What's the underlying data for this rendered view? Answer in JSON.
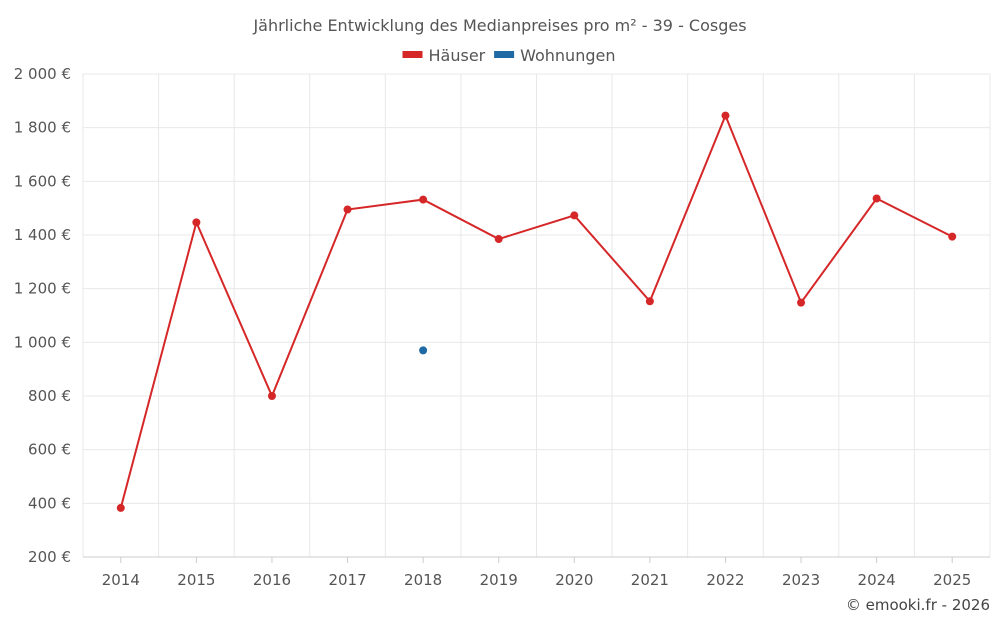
{
  "chart_data": {
    "type": "line",
    "title": "Jährliche Entwicklung des Medianpreises pro m² - 39 - Cosges",
    "xlabel": "",
    "ylabel": "",
    "categories": [
      "2014",
      "2015",
      "2016",
      "2017",
      "2018",
      "2019",
      "2020",
      "2021",
      "2022",
      "2023",
      "2024",
      "2025"
    ],
    "ylim": [
      200,
      2000
    ],
    "yticks": [
      200,
      400,
      600,
      800,
      1000,
      1200,
      1400,
      1600,
      1800,
      2000
    ],
    "ytick_labels": [
      "200 €",
      "400 €",
      "600 €",
      "800 €",
      "1 000 €",
      "1 200 €",
      "1 400 €",
      "1 600 €",
      "1 800 €",
      "2 000 €"
    ],
    "grid": true,
    "legend_position": "top-center",
    "series": [
      {
        "name": "Häuser",
        "color": "#d62728",
        "values": [
          383,
          1447,
          800,
          1495,
          1532,
          1385,
          1473,
          1153,
          1845,
          1148,
          1536,
          1394
        ]
      },
      {
        "name": "Wohnungen",
        "color": "#1f6aa5",
        "values": [
          null,
          null,
          null,
          null,
          970,
          null,
          null,
          null,
          null,
          null,
          null,
          null
        ]
      }
    ]
  },
  "credit": "© emooki.fr - 2026"
}
